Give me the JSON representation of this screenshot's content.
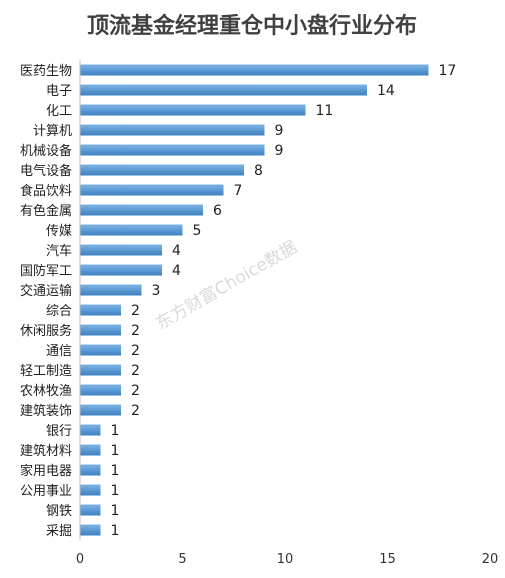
{
  "chart_data": {
    "type": "bar",
    "orientation": "horizontal",
    "title": "顶流基金经理重仓中小盘行业分布",
    "categories": [
      "医药生物",
      "电子",
      "化工",
      "计算机",
      "机械设备",
      "电气设备",
      "食品饮料",
      "有色金属",
      "传媒",
      "汽车",
      "国防军工",
      "交通运输",
      "综合",
      "休闲服务",
      "通信",
      "轻工制造",
      "农林牧渔",
      "建筑装饰",
      "银行",
      "建筑材料",
      "家用电器",
      "公用事业",
      "钢铁",
      "采掘"
    ],
    "values": [
      17,
      14,
      11,
      9,
      9,
      8,
      7,
      6,
      5,
      4,
      4,
      3,
      2,
      2,
      2,
      2,
      2,
      2,
      1,
      1,
      1,
      1,
      1,
      1
    ],
    "xlim": [
      0,
      20
    ],
    "xticks": [
      0,
      5,
      10,
      15,
      20
    ],
    "grid": false,
    "legend": "none",
    "bar_color": "#5b9bd5",
    "watermark": "东方财富Choice数据"
  }
}
